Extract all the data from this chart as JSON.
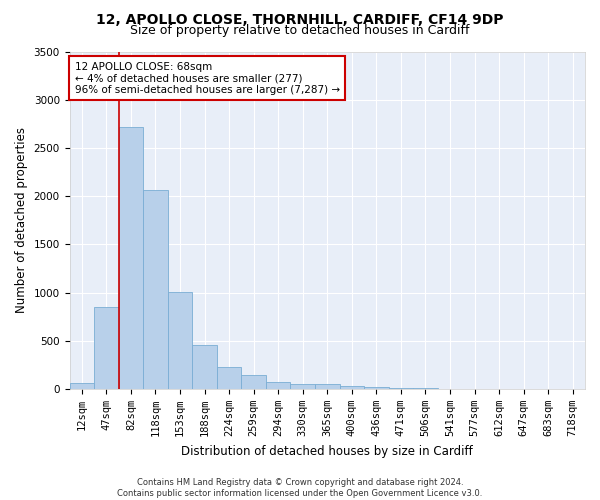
{
  "title": "12, APOLLO CLOSE, THORNHILL, CARDIFF, CF14 9DP",
  "subtitle": "Size of property relative to detached houses in Cardiff",
  "xlabel": "Distribution of detached houses by size in Cardiff",
  "ylabel": "Number of detached properties",
  "categories": [
    "12sqm",
    "47sqm",
    "82sqm",
    "118sqm",
    "153sqm",
    "188sqm",
    "224sqm",
    "259sqm",
    "294sqm",
    "330sqm",
    "365sqm",
    "400sqm",
    "436sqm",
    "471sqm",
    "506sqm",
    "541sqm",
    "577sqm",
    "612sqm",
    "647sqm",
    "683sqm",
    "718sqm"
  ],
  "values": [
    60,
    850,
    2720,
    2060,
    1010,
    455,
    225,
    140,
    70,
    55,
    55,
    30,
    25,
    10,
    10,
    0,
    0,
    0,
    0,
    0,
    0
  ],
  "bar_color": "#b8d0ea",
  "bar_edge_color": "#7aadd4",
  "vline_color": "#cc0000",
  "vline_xindex": 1.5,
  "annotation_text": "12 APOLLO CLOSE: 68sqm\n← 4% of detached houses are smaller (277)\n96% of semi-detached houses are larger (7,287) →",
  "annotation_box_color": "white",
  "annotation_box_edge": "#cc0000",
  "ylim": [
    0,
    3500
  ],
  "yticks": [
    0,
    500,
    1000,
    1500,
    2000,
    2500,
    3000,
    3500
  ],
  "background_color": "#e8eef8",
  "footer": "Contains HM Land Registry data © Crown copyright and database right 2024.\nContains public sector information licensed under the Open Government Licence v3.0.",
  "title_fontsize": 10,
  "subtitle_fontsize": 9,
  "xlabel_fontsize": 8.5,
  "ylabel_fontsize": 8.5,
  "tick_fontsize": 7.5,
  "annot_fontsize": 7.5,
  "footer_fontsize": 6
}
